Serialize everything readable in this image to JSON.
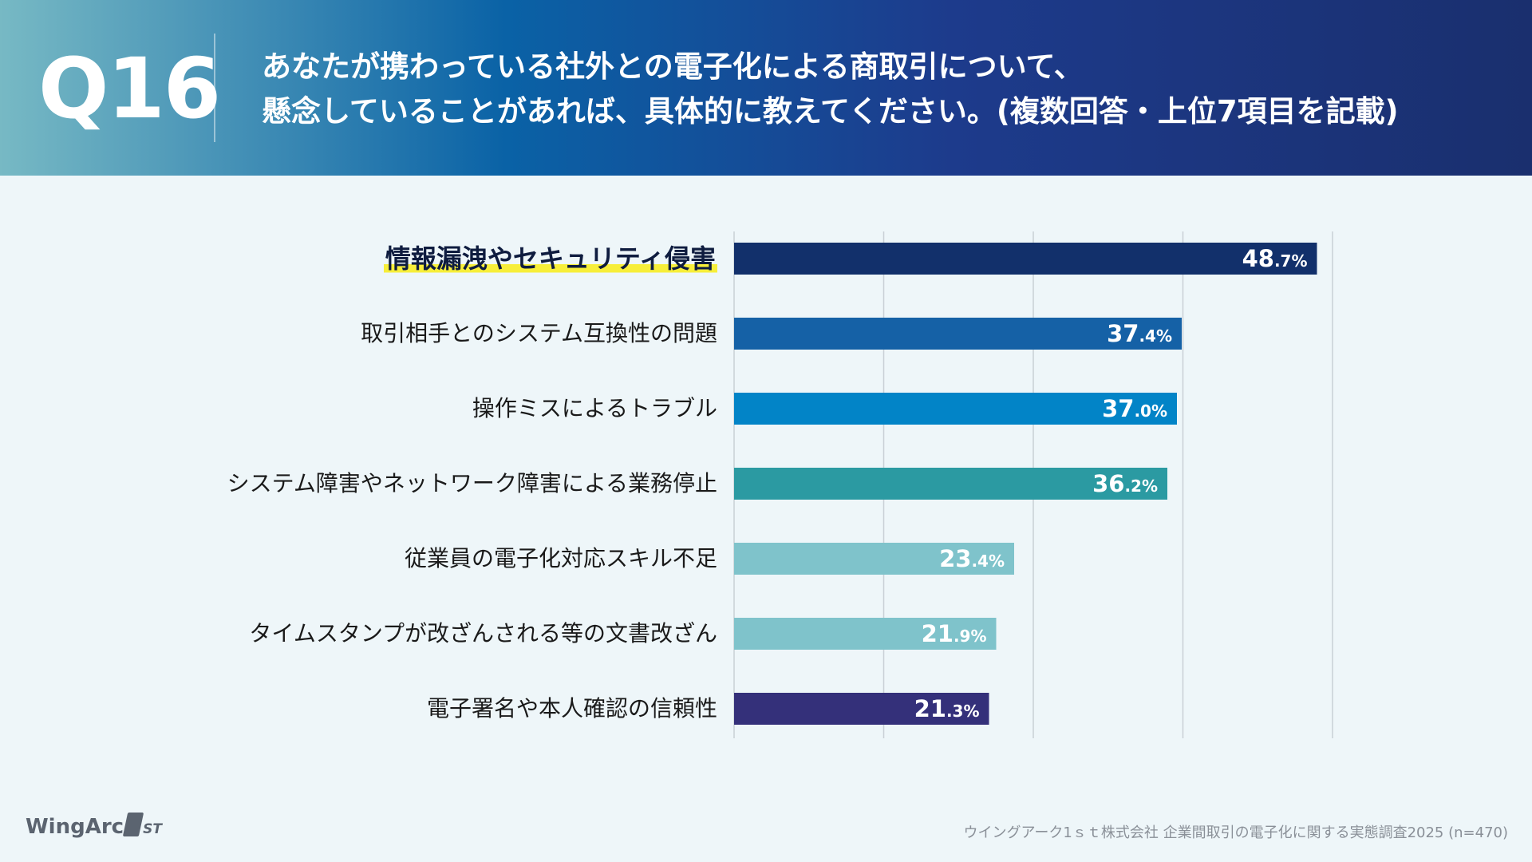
{
  "header": {
    "q_label": "Q16",
    "question_line1": "あなたが携わっている社外との電子化による商取引について、",
    "question_line2": "懸念していることがあれば、具体的に教えてください。(複数回答・上位7項目を記載)"
  },
  "chart_data": {
    "type": "bar",
    "orientation": "horizontal",
    "categories": [
      "情報漏洩やセキュリティ侵害",
      "取引相手とのシステム互換性の問題",
      "操作ミスによるトラブル",
      "システム障害やネットワーク障害による業務停止",
      "従業員の電子化対応スキル不足",
      "タイムスタンプが改ざんされる等の文書改ざん",
      "電子署名や本人確認の信頼性"
    ],
    "values": [
      48.7,
      37.4,
      37.0,
      36.2,
      23.4,
      21.9,
      21.3
    ],
    "value_labels": [
      {
        "int": "48",
        "dec": ".7%"
      },
      {
        "int": "37",
        "dec": ".4%"
      },
      {
        "int": "37",
        "dec": ".0%"
      },
      {
        "int": "36",
        "dec": ".2%"
      },
      {
        "int": "23",
        "dec": ".4%"
      },
      {
        "int": "21",
        "dec": ".9%"
      },
      {
        "int": "21",
        "dec": ".3%"
      }
    ],
    "colors": [
      "#12306b",
      "#1561a6",
      "#0284c7",
      "#2b9aa2",
      "#7fc3cb",
      "#7fc3cb",
      "#34307a"
    ],
    "highlight_index": 0,
    "highlight_color": "#f7ee3a",
    "xlim": [
      0,
      50
    ],
    "grid": true,
    "gridline_values": [
      0,
      12.5,
      25,
      37.5,
      50
    ],
    "grid_color": "#c9d0d6"
  },
  "footer": {
    "logo_text": "WingArc",
    "logo_suffix": "ST",
    "source": "ウイングアーク1ｓｔ株式会社 企業間取引の電子化に関する実態調査2025 (n=470)"
  }
}
